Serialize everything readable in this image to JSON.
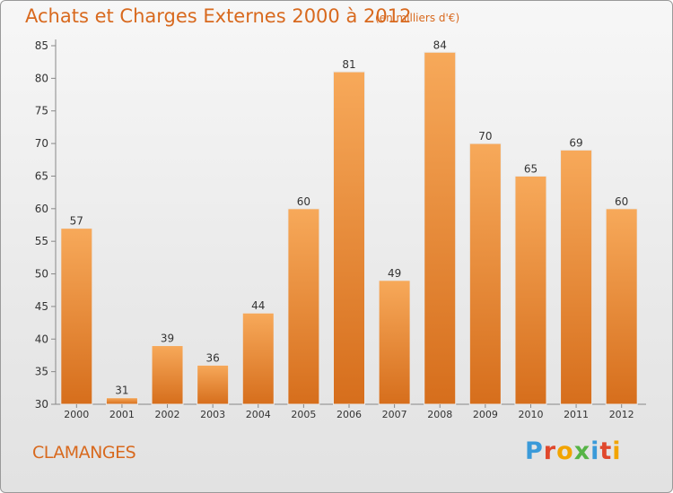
{
  "header": {
    "title": "Achats et Charges Externes 2000 à 2012",
    "unit": "(en milliers d'€)"
  },
  "footer": {
    "commune": "CLAMANGES",
    "logo_letters": [
      "P",
      "r",
      "o",
      "x",
      "i",
      "t",
      "i"
    ],
    "logo_colors": [
      "#3a9ad9",
      "#e0482c",
      "#f2a400",
      "#56b446",
      "#3a9ad9",
      "#e0482c",
      "#f2a400"
    ]
  },
  "chart_data": {
    "type": "bar",
    "categories": [
      "2000",
      "2001",
      "2002",
      "2003",
      "2004",
      "2005",
      "2006",
      "2007",
      "2008",
      "2009",
      "2010",
      "2011",
      "2012"
    ],
    "values": [
      57,
      31,
      39,
      36,
      44,
      60,
      81,
      49,
      84,
      70,
      65,
      69,
      60
    ],
    "value_labels": [
      "57",
      "31",
      "39",
      "36",
      "44",
      "60",
      "81",
      "49",
      "84",
      "70",
      "65",
      "69",
      "60"
    ],
    "ylim": [
      30,
      85
    ],
    "yticks": [
      30,
      35,
      40,
      45,
      50,
      55,
      60,
      65,
      70,
      75,
      80,
      85
    ],
    "grid": false,
    "bar_color_top": "#f7a95a",
    "bar_color_bottom": "#d66e1c",
    "text_color": "#333333"
  }
}
